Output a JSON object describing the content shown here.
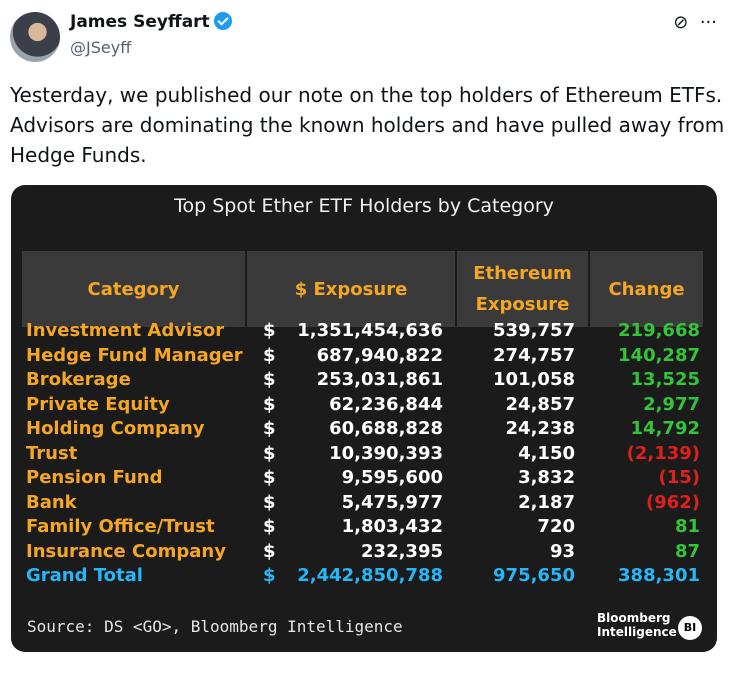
{
  "tweet": {
    "author": {
      "name": "James Seyffart",
      "handle": "@JSeyff"
    },
    "text": [
      "Yesterday, we published our note on the top holders of Ethereum ETFs.",
      "Advisors are dominating the known holders and have pulled away from",
      "Hedge Funds."
    ]
  },
  "table": {
    "title": "Top Spot Ether ETF Holders by Category",
    "headers": [
      "Category",
      "$ Exposure",
      "Ethereum Exposure",
      "Change"
    ],
    "rows": [
      [
        "Investment Advisor",
        "$",
        "1,351,454,636",
        "539,757",
        "219,668"
      ],
      [
        "Hedge Fund Manager",
        "$",
        "687,940,822",
        "274,757",
        "140,287"
      ],
      [
        "Brokerage",
        "$",
        "253,031,861",
        "101,058",
        "13,525"
      ],
      [
        "Private Equity",
        "$",
        "62,236,844",
        "24,857",
        "2,977"
      ],
      [
        "Holding Company",
        "$",
        "60,688,828",
        "24,238",
        "14,792"
      ],
      [
        "Trust",
        "$",
        "10,390,393",
        "4,150",
        "(2,139)"
      ],
      [
        "Pension Fund",
        "$",
        "9,595,600",
        "3,832",
        "(15)"
      ],
      [
        "Bank",
        "$",
        "5,475,977",
        "2,187",
        "(962)"
      ],
      [
        "Family Office/Trust",
        "$",
        "1,803,432",
        "720",
        "81"
      ],
      [
        "Insurance Company",
        "$",
        "232,395",
        "93",
        "87"
      ]
    ],
    "total": [
      "Grand Total",
      "$",
      "2,442,850,788",
      "975,650",
      "388,301"
    ],
    "source": "Source: DS <GO>, Bloomberg Intelligence",
    "brand": [
      "Bloomberg",
      "Intelligence"
    ],
    "brand_mark": "BI"
  }
}
